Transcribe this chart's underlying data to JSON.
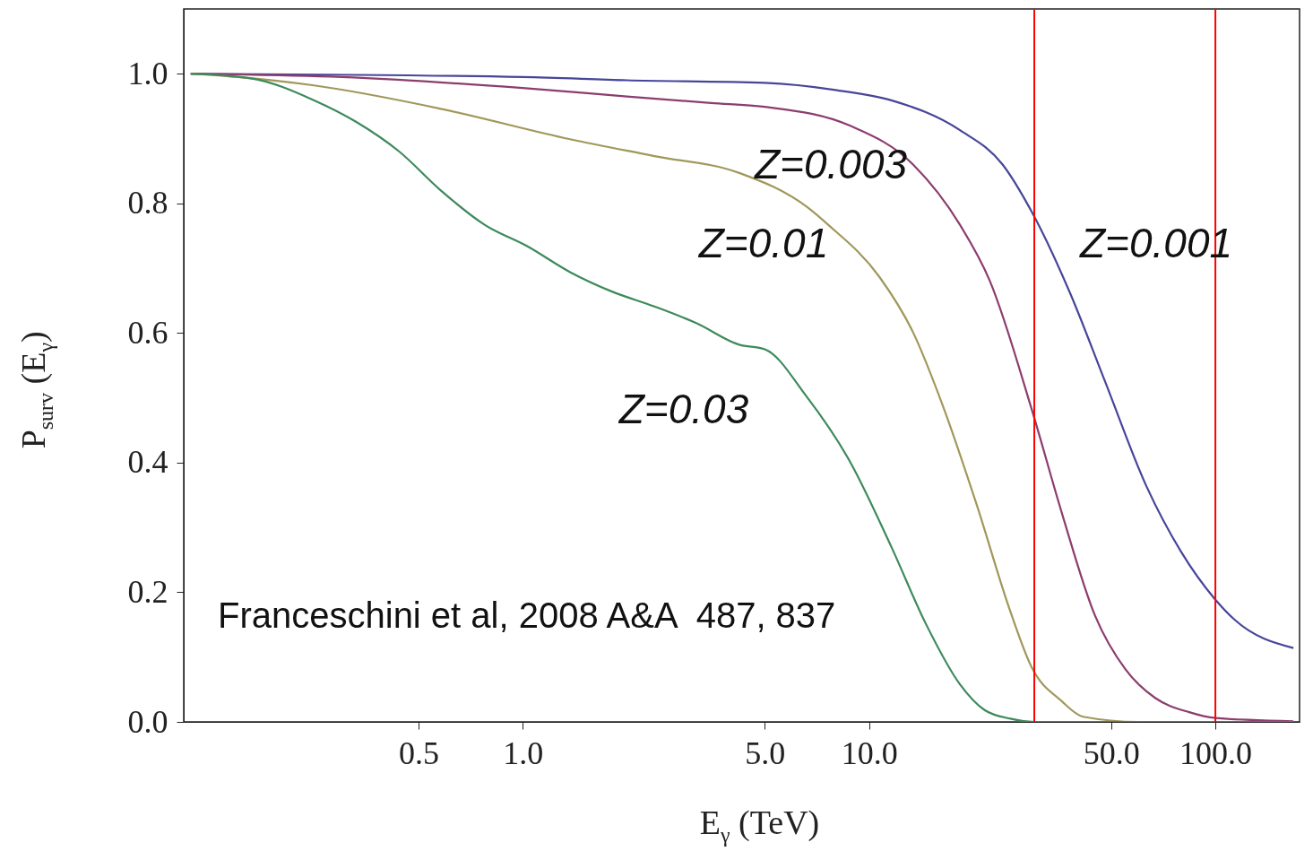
{
  "chart_data": {
    "type": "line",
    "xlabel": "E$_{γ}$  (TeV)",
    "ylabel": "P$_{surv}$ (E$_{γ}$)",
    "log": "x",
    "xlim": [
      0.105,
      175
    ],
    "ylim": [
      0,
      1.1
    ],
    "xticks": [
      0.5,
      {
        "value": 1,
        "label": "1.0"
      },
      {
        "value": 5,
        "label": "5.0"
      },
      {
        "value": 10,
        "label": "10.0"
      },
      {
        "value": 50,
        "label": "50.0"
      },
      {
        "value": 100,
        "label": "100.0"
      }
    ],
    "yticks": [
      {
        "value": 0,
        "label": "0.0"
      },
      {
        "value": 0.2,
        "label": "0.2"
      },
      {
        "value": 0.4,
        "label": "0.4"
      },
      {
        "value": 0.6,
        "label": "0.6"
      },
      {
        "value": 0.8,
        "label": "0.8"
      },
      {
        "value": 1,
        "label": "1.0"
      }
    ],
    "series": [
      {
        "color": "#464699",
        "x": [
          0.11,
          1,
          2,
          5,
          8,
          11.6,
          18.3,
          24.3,
          29.5,
          38.1,
          47.8,
          63.3,
          79.5,
          99.5,
          114,
          168
        ],
        "values": [
          1.0,
          0.995,
          0.99,
          0.986,
          0.975,
          0.959,
          0.913,
          0.86,
          0.787,
          0.661,
          0.528,
          0.363,
          0.263,
          0.19,
          0.157,
          0.114
        ]
      },
      {
        "color": "#8c3d6e",
        "x": [
          0.11,
          0.3,
          1,
          2,
          3.5,
          5,
          8.8,
          13.4,
          18.3,
          22.3,
          29.5,
          36,
          45,
          55,
          67,
          84,
          100,
          168
        ],
        "values": [
          1.0,
          0.995,
          0.978,
          0.965,
          0.955,
          0.949,
          0.92,
          0.86,
          0.767,
          0.681,
          0.482,
          0.323,
          0.163,
          0.081,
          0.037,
          0.015,
          0.006,
          0.001
        ]
      },
      {
        "color": "#a0985a",
        "x": [
          0.11,
          0.15,
          0.25,
          0.58,
          1.37,
          2.4,
          4.22,
          6.64,
          7.62,
          10.7,
          13.4,
          16.3,
          20.4,
          25.6,
          29.5,
          36,
          41.5,
          60,
          168
        ],
        "values": [
          1.0,
          0.995,
          0.982,
          0.946,
          0.899,
          0.873,
          0.847,
          0.794,
          0.767,
          0.687,
          0.601,
          0.489,
          0.337,
          0.17,
          0.084,
          0.032,
          0.008,
          0.0,
          0.0
        ]
      },
      {
        "color": "#3d8a5c",
        "x": [
          0.11,
          0.164,
          0.25,
          0.33,
          0.44,
          0.58,
          0.776,
          1.03,
          1.37,
          1.81,
          2.4,
          3.18,
          4.22,
          5,
          6.6,
          8.8,
          11.6,
          14.6,
          18.3,
          21.6,
          25.6,
          30,
          168
        ],
        "values": [
          1.0,
          0.993,
          0.959,
          0.926,
          0.88,
          0.82,
          0.767,
          0.734,
          0.694,
          0.664,
          0.641,
          0.615,
          0.582,
          0.575,
          0.502,
          0.402,
          0.27,
          0.151,
          0.058,
          0.018,
          0.005,
          0.0,
          0.0
        ]
      }
    ],
    "ref_lines": [
      {
        "axis": "x",
        "value": 30,
        "color": "#ff0000"
      },
      {
        "axis": "x",
        "value": 100,
        "color": "#ff0000"
      }
    ],
    "annotations": [
      "Z=0.003",
      "Z=0.01",
      "Z=0.001",
      "Z=0.03",
      "Franceschini et al, 2008 A&A  487, 837"
    ]
  }
}
